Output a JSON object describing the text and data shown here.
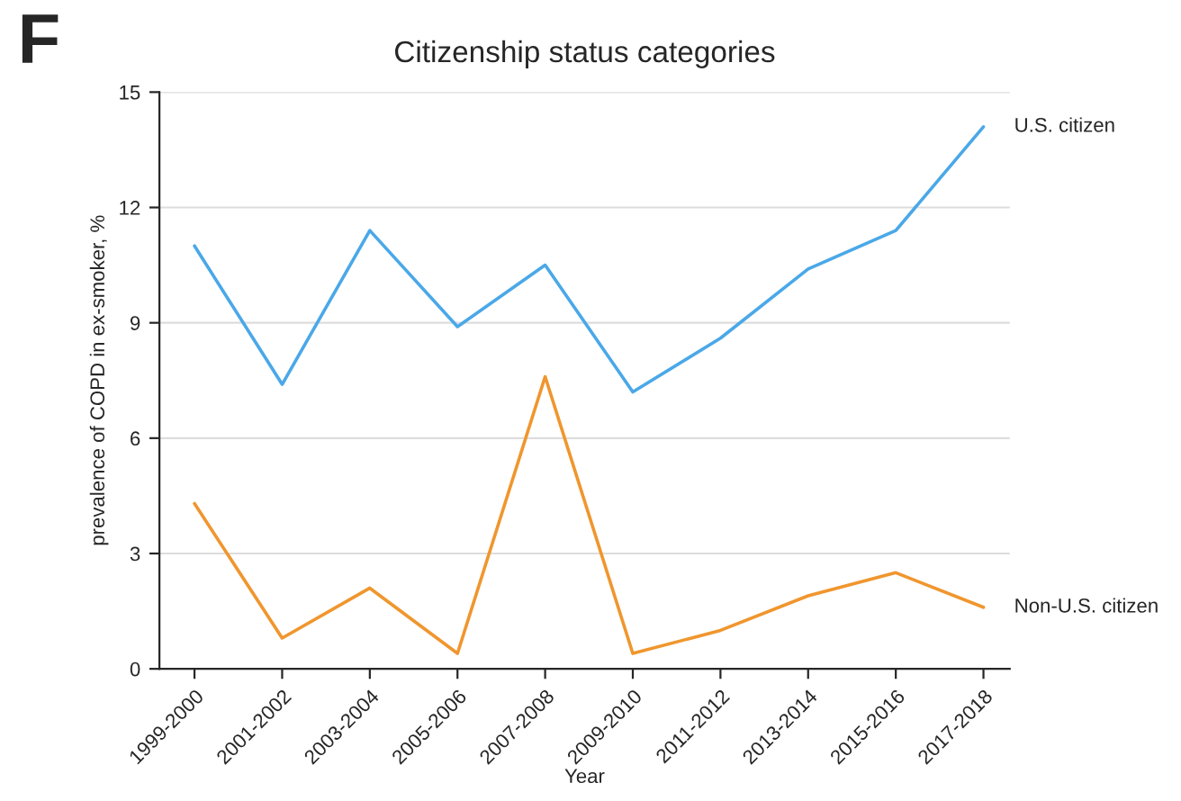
{
  "chart_data": {
    "type": "line",
    "title": "Citizenship status categories",
    "xlabel": "Year",
    "ylabel": "prevalence of COPD in ex-smoker, %",
    "categories": [
      "1999-2000",
      "2001-2002",
      "2003-2004",
      "2005-2006",
      "2007-2008",
      "2009-2010",
      "2011-2012",
      "2013-2014",
      "2015-2016",
      "2017-2018"
    ],
    "series": [
      {
        "name": "U.S. citizen",
        "color": "#4aa8e8",
        "values": [
          11.0,
          7.4,
          11.4,
          8.9,
          10.5,
          7.2,
          8.6,
          10.4,
          11.4,
          14.1
        ]
      },
      {
        "name": "Non-U.S. citizen",
        "color": "#f0962e",
        "values": [
          4.3,
          0.8,
          2.1,
          0.4,
          7.6,
          0.4,
          1.0,
          1.9,
          2.5,
          1.6
        ]
      }
    ],
    "ylim": [
      0,
      15
    ],
    "yticks": [
      0,
      3,
      6,
      9,
      12,
      15
    ],
    "grid": "y",
    "legend": false,
    "annotations": [
      "F"
    ]
  }
}
